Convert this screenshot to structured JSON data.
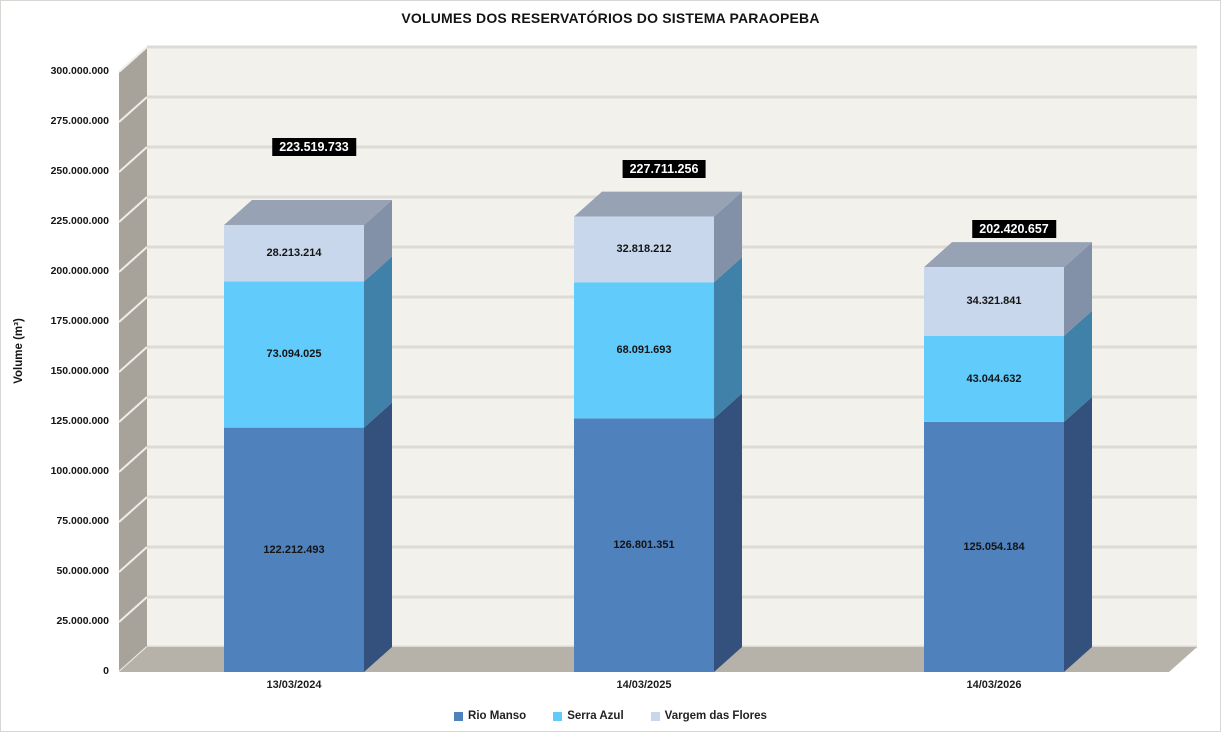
{
  "chart_data": {
    "type": "bar",
    "stacked": true,
    "projection": "3d",
    "title": "VOLUMES DOS RESERVATÓRIOS DO SISTEMA PARAOPEBA",
    "xlabel": "",
    "ylabel": "Volume (m³)",
    "categories": [
      "13/03/2024",
      "14/03/2025",
      "14/03/2026"
    ],
    "series": [
      {
        "name": "Rio Manso",
        "values": [
          122212493,
          126801351,
          125054184
        ],
        "labels": [
          "122.212.493",
          "126.801.351",
          "125.054.184"
        ],
        "color": "#4f81bd",
        "side_color": "#33517c"
      },
      {
        "name": "Serra Azul",
        "values": [
          73094025,
          68091693,
          43044632
        ],
        "labels": [
          "73.094.025",
          "68.091.693",
          "43.044.632"
        ],
        "color": "#61cbfb",
        "side_color": "#3f81a9"
      },
      {
        "name": "Vargem das Flores",
        "values": [
          28213214,
          32818212,
          34321841
        ],
        "labels": [
          "28.213.214",
          "32.818.212",
          "34.321.841"
        ],
        "color": "#c9d7ec",
        "side_color": "#8291a8",
        "top_color": "#97a3b5"
      }
    ],
    "totals": [
      223519733,
      227711256,
      202420657
    ],
    "total_labels": [
      "223.519.733",
      "227.711.256",
      "202.420.657"
    ],
    "total_label_style": {
      "background": "#000000",
      "text": "#ffffff"
    },
    "ylim": [
      0,
      300000000
    ],
    "ytick_step": 25000000,
    "ytick_labels": [
      "0",
      "25.000.000",
      "50.000.000",
      "75.000.000",
      "100.000.000",
      "125.000.000",
      "150.000.000",
      "175.000.000",
      "200.000.000",
      "225.000.000",
      "250.000.000",
      "275.000.000",
      "300.000.000"
    ],
    "number_format": "thousands-dot",
    "grid": true,
    "legend_position": "bottom",
    "wall_colors": {
      "back_wall": "#f3f1ec",
      "side_wall": "#a7a39b",
      "floor": "#b6b2aa",
      "gridline": "#dedbd6",
      "side_wall_gridline": "#f0eee9"
    }
  }
}
